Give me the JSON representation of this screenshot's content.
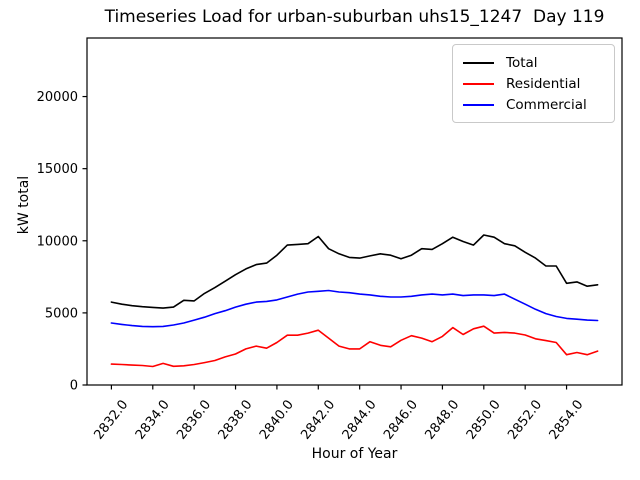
{
  "chart_data": {
    "type": "line",
    "title": "Timeseries Load for urban-suburban uhs15_1247  Day 119",
    "xlabel": "Hour of Year",
    "ylabel": "kW total",
    "grid": false,
    "legend_position": "upper right",
    "xlim": [
      2830.82,
      2856.68
    ],
    "ylim": [
      0,
      24060
    ],
    "x_ticks": [
      2832,
      2834,
      2836,
      2838,
      2840,
      2842,
      2844,
      2846,
      2848,
      2850,
      2852,
      2854
    ],
    "x_tick_labels": [
      "2832.0",
      "2834.0",
      "2836.0",
      "2838.0",
      "2840.0",
      "2842.0",
      "2844.0",
      "2846.0",
      "2848.0",
      "2850.0",
      "2852.0",
      "2854.0"
    ],
    "y_ticks": [
      0,
      5000,
      10000,
      15000,
      20000
    ],
    "y_tick_labels": [
      "0",
      "5000",
      "10000",
      "15000",
      "20000"
    ],
    "x": [
      2832,
      2832.5,
      2833,
      2833.5,
      2834,
      2834.5,
      2835,
      2835.5,
      2836,
      2836.5,
      2837,
      2837.5,
      2838,
      2838.5,
      2839,
      2839.5,
      2840,
      2840.5,
      2841,
      2841.5,
      2842,
      2842.5,
      2843,
      2843.5,
      2844,
      2844.5,
      2845,
      2845.5,
      2846,
      2846.5,
      2847,
      2847.5,
      2848,
      2848.5,
      2849,
      2849.5,
      2850,
      2850.5,
      2851,
      2851.5,
      2852,
      2852.5,
      2853,
      2853.5,
      2854,
      2854.5,
      2855,
      2855.5
    ],
    "series": [
      {
        "name": "Total",
        "color": "#000000",
        "values": [
          5750,
          5600,
          5500,
          5430,
          5380,
          5330,
          5400,
          5870,
          5830,
          6350,
          6750,
          7200,
          7650,
          8050,
          8350,
          8450,
          9000,
          9700,
          9750,
          9800,
          10300,
          9450,
          9100,
          8850,
          8800,
          8950,
          9100,
          9000,
          8750,
          9000,
          9450,
          9400,
          9800,
          10250,
          9950,
          9700,
          10400,
          10250,
          9800,
          9650,
          9200,
          8800,
          8250,
          8250,
          7050,
          7150,
          6850,
          6950
        ]
      },
      {
        "name": "Residential",
        "color": "#ff0000",
        "values": [
          1450,
          1420,
          1380,
          1350,
          1280,
          1500,
          1300,
          1330,
          1420,
          1550,
          1700,
          1950,
          2150,
          2500,
          2700,
          2550,
          2950,
          3450,
          3450,
          3600,
          3800,
          3250,
          2700,
          2500,
          2500,
          3000,
          2750,
          2650,
          3100,
          3420,
          3250,
          3000,
          3370,
          3980,
          3500,
          3900,
          4080,
          3600,
          3650,
          3600,
          3470,
          3200,
          3080,
          2950,
          2100,
          2250,
          2100,
          2350
        ]
      },
      {
        "name": "Commercial",
        "color": "#0000ff",
        "values": [
          4300,
          4200,
          4120,
          4060,
          4040,
          4060,
          4160,
          4300,
          4500,
          4700,
          4950,
          5150,
          5400,
          5600,
          5750,
          5800,
          5900,
          6100,
          6300,
          6450,
          6500,
          6550,
          6450,
          6400,
          6300,
          6250,
          6150,
          6100,
          6100,
          6150,
          6250,
          6300,
          6250,
          6300,
          6200,
          6250,
          6250,
          6200,
          6300,
          5950,
          5600,
          5250,
          4950,
          4750,
          4620,
          4560,
          4500,
          4470
        ]
      }
    ]
  }
}
